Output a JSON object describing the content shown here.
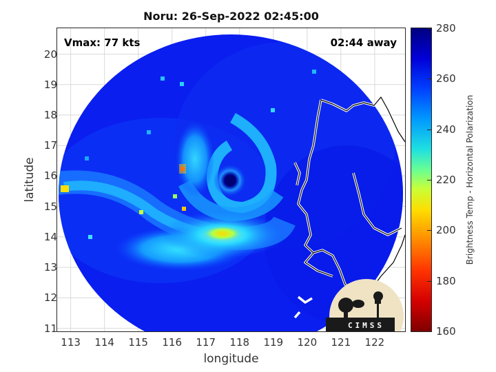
{
  "title": "Noru: 26-Sep-2022 02:45:00",
  "overlay": {
    "vmax": "Vmax: 77 kts",
    "time_away": "02:44 away"
  },
  "logo_text": "CIMSS",
  "axes": {
    "xlabel": "longitude",
    "ylabel": "latitude",
    "xticks": [
      "113",
      "114",
      "115",
      "116",
      "117",
      "118",
      "119",
      "120",
      "121",
      "122"
    ],
    "yticks": [
      "20",
      "19",
      "18",
      "17",
      "16",
      "15",
      "14",
      "13",
      "12",
      "11"
    ],
    "xlim": [
      112.6,
      122.9
    ],
    "ylim": [
      10.9,
      20.85
    ]
  },
  "colorbar": {
    "label": "Brightness Temp - Horizontal Polarization",
    "ticks": [
      "280",
      "260",
      "240",
      "220",
      "200",
      "180",
      "160"
    ],
    "range": [
      160,
      280
    ],
    "colormap": "jet"
  },
  "storm_center": {
    "lon": 117.85,
    "lat": 15.85
  },
  "colors": {
    "cold_core": "#000080",
    "background_swath": "#0a20f0",
    "coastline": "#ffffff"
  }
}
